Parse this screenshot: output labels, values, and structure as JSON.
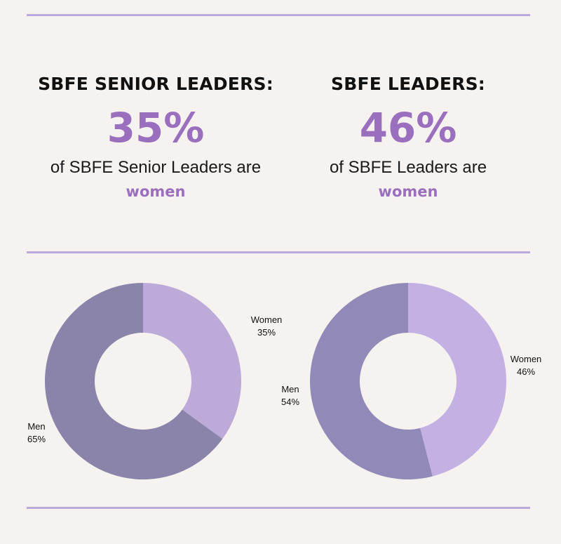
{
  "colors": {
    "background": "#f6f2ef",
    "accent": "#9a6fbd",
    "rule": "#b9a9dc",
    "women_slice_left": "#bcaad8",
    "men_slice_left": "#8a84ab",
    "women_slice_right": "#c4b1e3",
    "men_slice_right": "#918ab9"
  },
  "stats": [
    {
      "heading": "SBFE SENIOR LEADERS:",
      "value": "35%",
      "text": "of SBFE Senior Leaders are",
      "emphasis": "women"
    },
    {
      "heading": "SBFE LEADERS:",
      "value": "46%",
      "text": "of SBFE Leaders are",
      "emphasis": "women"
    }
  ],
  "chart_data": [
    {
      "type": "pie",
      "donut": true,
      "title": "",
      "slices": [
        {
          "label": "Women",
          "value": 35,
          "display": "35%"
        },
        {
          "label": "Men",
          "value": 65,
          "display": "65%"
        }
      ]
    },
    {
      "type": "pie",
      "donut": true,
      "title": "",
      "slices": [
        {
          "label": "Women",
          "value": 46,
          "display": "46%"
        },
        {
          "label": "Men",
          "value": 54,
          "display": "54%"
        }
      ]
    }
  ]
}
